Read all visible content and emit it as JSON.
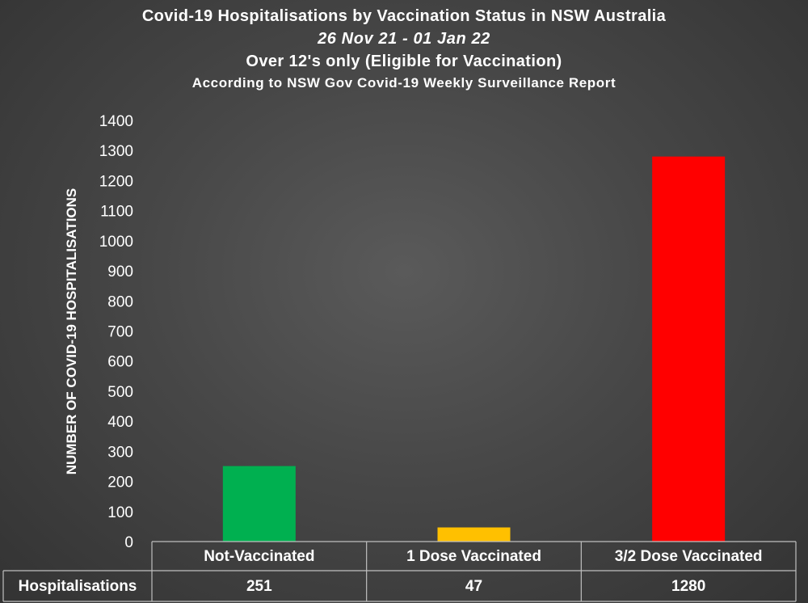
{
  "titles": {
    "line1": "Covid-19 Hospitalisations by Vaccination Status in NSW Australia",
    "line2": "26 Nov 21 - 01 Jan 22",
    "line3": "Over 12's only (Eligible for Vaccination)",
    "line4": "According to NSW Gov Covid-19 Weekly Surveillance Report"
  },
  "chart_data": {
    "type": "bar",
    "title": "Covid-19 Hospitalisations by Vaccination Status in NSW Australia",
    "categories": [
      "Not-Vaccinated",
      "1 Dose Vaccinated",
      "3/2 Dose Vaccinated"
    ],
    "series": [
      {
        "name": "Hospitalisations",
        "values": [
          251,
          47,
          1280
        ]
      }
    ],
    "bar_colors": [
      "#00b050",
      "#ffc000",
      "#ff0000"
    ],
    "xlabel": "",
    "ylabel": "NUMBER OF COVID-19 HOSPITALISATIONS",
    "ylim": [
      0,
      1400
    ],
    "yticks": [
      0,
      100,
      200,
      300,
      400,
      500,
      600,
      700,
      800,
      900,
      1000,
      1100,
      1200,
      1300,
      1400
    ],
    "grid": false,
    "data_table": true
  }
}
